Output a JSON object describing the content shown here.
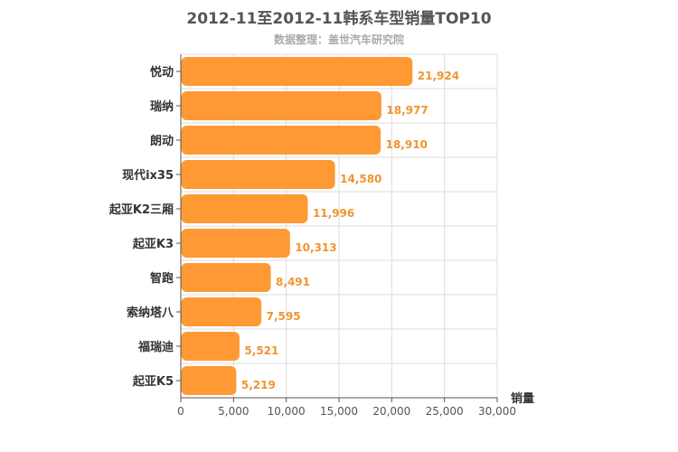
{
  "chart_data": {
    "type": "bar",
    "orientation": "horizontal",
    "title": "2012-11至2012-11韩系车型销量TOP10",
    "subtitle": "数据整理：盖世汽车研究院",
    "xlabel": "销量",
    "ylabel": "",
    "categories": [
      "悦动",
      "瑞纳",
      "朗动",
      "现代ix35",
      "起亚K2三厢",
      "起亚K3",
      "智跑",
      "索纳塔八",
      "福瑞迪",
      "起亚K5"
    ],
    "values": [
      21924,
      18977,
      18910,
      14580,
      11996,
      10313,
      8491,
      7595,
      5521,
      5219
    ],
    "value_labels": [
      "21,924",
      "18,977",
      "18,910",
      "14,580",
      "11,996",
      "10,313",
      "8,491",
      "7,595",
      "5,521",
      "5,219"
    ],
    "xlim": [
      0,
      30000
    ],
    "ticks": [
      0,
      5000,
      10000,
      15000,
      20000,
      25000,
      30000
    ],
    "tick_labels": [
      "0",
      "5,000",
      "10,000",
      "15,000",
      "20,000",
      "25,000",
      "30,000"
    ],
    "grid": true,
    "bar_color": "#ff9933",
    "label_color": "#f0952f"
  }
}
